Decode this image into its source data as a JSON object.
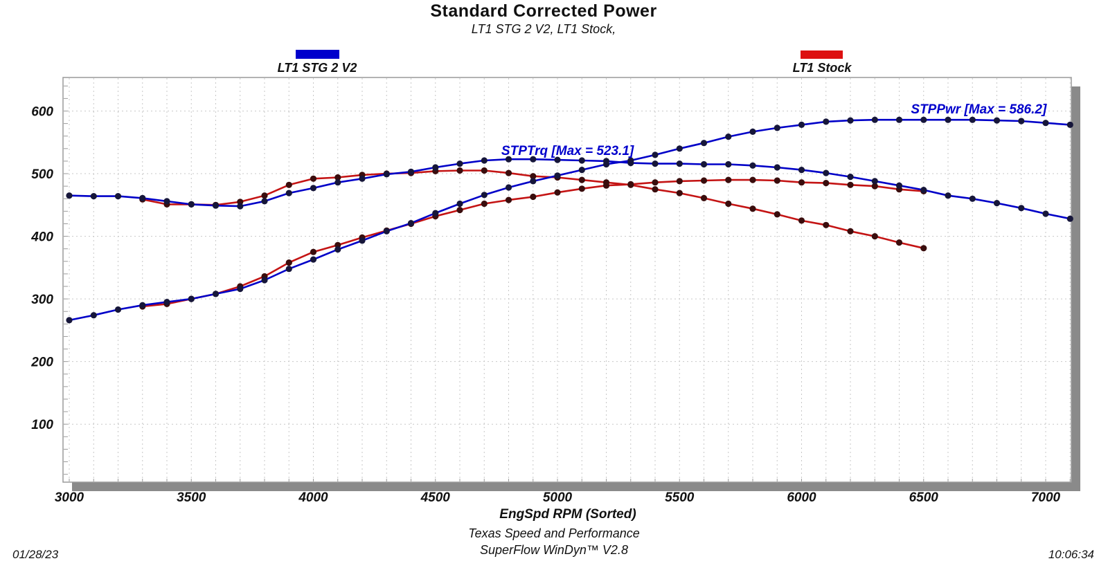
{
  "header": {
    "title": "Standard Corrected Power",
    "subtitle": "LT1 STG 2 V2, LT1 Stock,"
  },
  "legend": [
    {
      "label": "LT1 STG 2 V2",
      "color": "#0000cc"
    },
    {
      "label": "LT1 Stock",
      "color": "#dd1111"
    }
  ],
  "footer": {
    "xlabel": "EngSpd  RPM   (Sorted)",
    "company": "Texas Speed and Performance",
    "software": "SuperFlow WinDyn™  V2.8",
    "date": "01/28/23",
    "time": "10:06:34"
  },
  "chart_data": {
    "type": "line",
    "title": "Standard Corrected Power",
    "subtitle": "LT1 STG 2 V2, LT1 Stock,",
    "xlabel": "EngSpd  RPM   (Sorted)",
    "ylabel": "",
    "xlim": [
      3000,
      7100
    ],
    "ylim": [
      0,
      650
    ],
    "x_ticks": [
      3000,
      3500,
      4000,
      4500,
      5000,
      5500,
      6000,
      6500,
      7000
    ],
    "y_ticks": [
      100,
      200,
      300,
      400,
      500,
      600
    ],
    "grid": "light dashed vertical lines every 100 RPM, horizontal every 100 units",
    "legend_position": "top",
    "annotations": [
      {
        "text": "STPTrq [Max = 523.1]",
        "rpm": 4770,
        "value": 530,
        "color": "#0000cc"
      },
      {
        "text": "STPPwr [Max = 586.2]",
        "rpm": 6448,
        "value": 596,
        "color": "#0000cc"
      }
    ],
    "series": [
      {
        "name": "STPTrq (LT1 Stock)",
        "run": "LT1 Stock",
        "channel": "torque",
        "color": "#c41414",
        "marker_color": "#3a0d0d",
        "x": [
          3300,
          3400,
          3500,
          3600,
          3700,
          3800,
          3900,
          4000,
          4100,
          4200,
          4300,
          4400,
          4500,
          4600,
          4700,
          4800,
          4900,
          5000,
          5100,
          5200,
          5300,
          5400,
          5500,
          5600,
          5700,
          5800,
          5900,
          6000,
          6100,
          6200,
          6300,
          6400,
          6500
        ],
        "values": [
          459,
          451,
          451,
          450,
          455,
          465,
          482,
          492,
          494,
          498,
          500,
          501,
          504,
          505,
          505,
          501,
          496,
          494,
          490,
          486,
          482,
          475,
          469,
          461,
          452,
          444,
          435,
          425,
          418,
          408,
          400,
          390,
          381
        ]
      },
      {
        "name": "STPPwr (LT1 Stock)",
        "run": "LT1 Stock",
        "channel": "power",
        "color": "#c41414",
        "marker_color": "#3a0d0d",
        "x": [
          3300,
          3400,
          3500,
          3600,
          3700,
          3800,
          3900,
          4000,
          4100,
          4200,
          4300,
          4400,
          4500,
          4600,
          4700,
          4800,
          4900,
          5000,
          5100,
          5200,
          5300,
          5400,
          5500,
          5600,
          5700,
          5800,
          5900,
          6000,
          6100,
          6200,
          6300,
          6400,
          6500
        ],
        "values": [
          288,
          292,
          300,
          308,
          320,
          336,
          358,
          375,
          386,
          398,
          409,
          420,
          432,
          442,
          452,
          458,
          463,
          470,
          476,
          481,
          483,
          486,
          488,
          489,
          490,
          490,
          489,
          486,
          485,
          482,
          480,
          475,
          472
        ]
      },
      {
        "name": "STPTrq (LT1 STG 2 V2)",
        "run": "LT1 STG 2 V2",
        "channel": "torque",
        "max": 523.1,
        "color": "#0000c8",
        "marker_color": "#16163a",
        "x": [
          3000,
          3100,
          3200,
          3300,
          3400,
          3500,
          3600,
          3700,
          3800,
          3900,
          4000,
          4100,
          4200,
          4300,
          4400,
          4500,
          4600,
          4700,
          4800,
          4900,
          5000,
          5100,
          5200,
          5300,
          5400,
          5500,
          5600,
          5700,
          5800,
          5900,
          6000,
          6100,
          6200,
          6300,
          6400,
          6500,
          6600,
          6700,
          6800,
          6900,
          7000,
          7100
        ],
        "values": [
          465,
          464,
          464,
          461,
          456,
          451,
          449,
          448,
          456,
          469,
          477,
          486,
          492,
          499,
          503,
          510,
          516,
          521,
          523,
          523,
          522,
          521,
          520,
          517,
          516,
          516,
          515,
          515,
          513,
          510,
          506,
          501,
          495,
          488,
          481,
          474,
          465,
          460,
          453,
          445,
          436,
          428
        ]
      },
      {
        "name": "STPPwr (LT1 STG 2 V2)",
        "run": "LT1 STG 2 V2",
        "channel": "power",
        "max": 586.2,
        "color": "#0000c8",
        "marker_color": "#16163a",
        "x": [
          3000,
          3100,
          3200,
          3300,
          3400,
          3500,
          3600,
          3700,
          3800,
          3900,
          4000,
          4100,
          4200,
          4300,
          4400,
          4500,
          4600,
          4700,
          4800,
          4900,
          5000,
          5100,
          5200,
          5300,
          5400,
          5500,
          5600,
          5700,
          5800,
          5900,
          6000,
          6100,
          6200,
          6300,
          6400,
          6500,
          6600,
          6700,
          6800,
          6900,
          7000,
          7100
        ],
        "values": [
          266,
          274,
          283,
          290,
          295,
          300,
          308,
          316,
          330,
          348,
          363,
          379,
          393,
          408,
          421,
          437,
          452,
          466,
          478,
          488,
          497,
          506,
          515,
          521,
          530,
          540,
          549,
          559,
          567,
          573,
          578,
          583,
          585,
          586,
          586,
          586,
          586,
          586,
          585,
          584,
          581,
          578
        ]
      }
    ]
  }
}
